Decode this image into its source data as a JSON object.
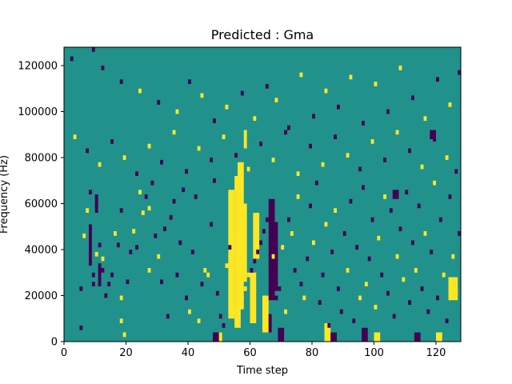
{
  "chart_data": {
    "type": "heatmap",
    "title": "Predicted : Gma",
    "xlabel": "Time step",
    "ylabel": "Frequency (Hz)",
    "xlim": [
      0,
      128
    ],
    "ylim": [
      0,
      128000
    ],
    "x_ticks": [
      0,
      20,
      40,
      60,
      80,
      100,
      120
    ],
    "y_ticks": [
      0,
      20000,
      40000,
      60000,
      80000,
      100000,
      120000
    ],
    "x_tick_labels": [
      "0",
      "20",
      "40",
      "60",
      "80",
      "100",
      "120"
    ],
    "y_tick_labels": [
      "0",
      "20000",
      "40000",
      "60000",
      "80000",
      "100000",
      "120000"
    ],
    "grid": false,
    "legend": "none",
    "colormap": "viridis",
    "value_levels": [
      -1,
      0,
      1
    ],
    "colors": {
      "-1": "#440154",
      "0": "#21918c",
      "1": "#fde725"
    },
    "background_value": 0,
    "cell_height_hz": 2000,
    "cells": [
      {
        "t": 5,
        "f": 5000,
        "v": -1
      },
      {
        "t": 5,
        "f": 22000,
        "v": -1
      },
      {
        "t": 6,
        "f": 45000,
        "v": 1
      },
      {
        "t": 7,
        "f": 56000,
        "v": 1
      },
      {
        "t": 8,
        "f": 64000,
        "v": -1
      },
      {
        "t": 8,
        "f": 49000,
        "v": -1
      },
      {
        "t": 8,
        "f": 33000,
        "v": -1
      },
      {
        "t": 9,
        "f": 28000,
        "v": -1
      },
      {
        "t": 9,
        "f": 24000,
        "v": -1
      },
      {
        "t": 10,
        "f": 62000,
        "v": -1
      },
      {
        "t": 10,
        "f": 58000,
        "v": -1
      },
      {
        "t": 10,
        "f": 37000,
        "v": 1
      },
      {
        "t": 11,
        "f": 41000,
        "v": -1
      },
      {
        "t": 12,
        "f": 35000,
        "v": 1
      },
      {
        "t": 12,
        "f": 30000,
        "v": -1
      },
      {
        "t": 13,
        "f": 19000,
        "v": -1
      },
      {
        "t": 14,
        "f": 24000,
        "v": -1
      },
      {
        "t": 15,
        "f": 28000,
        "v": -1
      },
      {
        "t": 16,
        "f": 46000,
        "v": 1
      },
      {
        "t": 17,
        "f": 41000,
        "v": -1
      },
      {
        "t": 18,
        "f": 8000,
        "v": 1
      },
      {
        "t": 18,
        "f": 18000,
        "v": 1
      },
      {
        "t": 18,
        "f": 56000,
        "v": -1
      },
      {
        "t": 19,
        "f": 2000,
        "v": 1
      },
      {
        "t": 20,
        "f": 25000,
        "v": -1
      },
      {
        "t": 21,
        "f": 38000,
        "v": -1
      },
      {
        "t": 22,
        "f": 47000,
        "v": 1
      },
      {
        "t": 23,
        "f": 40000,
        "v": -1
      },
      {
        "t": 24,
        "f": 64000,
        "v": 1
      },
      {
        "t": 25,
        "f": 55000,
        "v": 1
      },
      {
        "t": 26,
        "f": 62000,
        "v": -1
      },
      {
        "t": 27,
        "f": 57000,
        "v": 1
      },
      {
        "t": 27,
        "f": 30000,
        "v": 1
      },
      {
        "t": 28,
        "f": 68000,
        "v": -1
      },
      {
        "t": 29,
        "f": 45000,
        "v": -1
      },
      {
        "t": 30,
        "f": 36000,
        "v": 1
      },
      {
        "t": 31,
        "f": 25000,
        "v": -1
      },
      {
        "t": 32,
        "f": 48000,
        "v": -1
      },
      {
        "t": 33,
        "f": 10000,
        "v": -1
      },
      {
        "t": 34,
        "f": 53000,
        "v": -1
      },
      {
        "t": 35,
        "f": 60000,
        "v": -1
      },
      {
        "t": 36,
        "f": 28000,
        "v": -1
      },
      {
        "t": 37,
        "f": 42000,
        "v": -1
      },
      {
        "t": 38,
        "f": 65000,
        "v": -1
      },
      {
        "t": 39,
        "f": 18000,
        "v": -1
      },
      {
        "t": 40,
        "f": 12000,
        "v": 1
      },
      {
        "t": 41,
        "f": 38000,
        "v": -1
      },
      {
        "t": 42,
        "f": 62000,
        "v": -1
      },
      {
        "t": 43,
        "f": 8000,
        "v": 1
      },
      {
        "t": 44,
        "f": 24000,
        "v": -1
      },
      {
        "t": 45,
        "f": 30000,
        "v": 1
      },
      {
        "t": 46,
        "f": 28000,
        "v": 1
      },
      {
        "t": 47,
        "f": 50000,
        "v": -1
      },
      {
        "t": 48,
        "f": 69000,
        "v": -1
      },
      {
        "t": 49,
        "f": 20000,
        "v": -1
      },
      {
        "t": 50,
        "f": 10000,
        "v": -1
      },
      {
        "t": 51,
        "f": 6000,
        "v": -1
      },
      {
        "t": 52,
        "f": 32000,
        "v": 1
      },
      {
        "t": 53,
        "f": 40000,
        "v": -1
      },
      {
        "t": 54,
        "f": 45000,
        "v": 1
      },
      {
        "t": 55,
        "f": 12000,
        "v": 1
      },
      {
        "t": 56,
        "f": 15000,
        "v": 1
      },
      {
        "t": 57,
        "f": 18000,
        "v": 1
      },
      {
        "t": 58,
        "f": 22000,
        "v": 1
      },
      {
        "t": 59,
        "f": 28000,
        "v": 1
      },
      {
        "t": 60,
        "f": 30000,
        "v": -1
      },
      {
        "t": 61,
        "f": 34000,
        "v": -1
      },
      {
        "t": 62,
        "f": 38000,
        "v": -1
      },
      {
        "t": 63,
        "f": 42000,
        "v": -1
      },
      {
        "t": 64,
        "f": 47000,
        "v": -1
      },
      {
        "t": 65,
        "f": 52000,
        "v": -1
      },
      {
        "t": 66,
        "f": 57000,
        "v": -1
      },
      {
        "t": 67,
        "f": 36000,
        "v": 1
      },
      {
        "t": 68,
        "f": 18000,
        "v": -1
      },
      {
        "t": 69,
        "f": 22000,
        "v": -1
      },
      {
        "t": 70,
        "f": 40000,
        "v": 1
      },
      {
        "t": 71,
        "f": 12000,
        "v": 1
      },
      {
        "t": 72,
        "f": 52000,
        "v": -1
      },
      {
        "t": 73,
        "f": 46000,
        "v": 1
      },
      {
        "t": 74,
        "f": 30000,
        "v": -1
      },
      {
        "t": 75,
        "f": 62000,
        "v": 1
      },
      {
        "t": 76,
        "f": 24000,
        "v": -1
      },
      {
        "t": 77,
        "f": 18000,
        "v": 1
      },
      {
        "t": 78,
        "f": 35000,
        "v": -1
      },
      {
        "t": 79,
        "f": 58000,
        "v": -1
      },
      {
        "t": 80,
        "f": 42000,
        "v": 1
      },
      {
        "t": 81,
        "f": 68000,
        "v": -1
      },
      {
        "t": 82,
        "f": 16000,
        "v": -1
      },
      {
        "t": 83,
        "f": 28000,
        "v": -1
      },
      {
        "t": 84,
        "f": 50000,
        "v": 1
      },
      {
        "t": 85,
        "f": 6000,
        "v": -1
      },
      {
        "t": 86,
        "f": 38000,
        "v": -1
      },
      {
        "t": 87,
        "f": 56000,
        "v": 1
      },
      {
        "t": 88,
        "f": 22000,
        "v": -1
      },
      {
        "t": 89,
        "f": 12000,
        "v": -1
      },
      {
        "t": 90,
        "f": 46000,
        "v": -1
      },
      {
        "t": 91,
        "f": 30000,
        "v": 1
      },
      {
        "t": 92,
        "f": 60000,
        "v": -1
      },
      {
        "t": 93,
        "f": 8000,
        "v": -1
      },
      {
        "t": 94,
        "f": 40000,
        "v": -1
      },
      {
        "t": 95,
        "f": 18000,
        "v": 1
      },
      {
        "t": 96,
        "f": 66000,
        "v": -1
      },
      {
        "t": 97,
        "f": 24000,
        "v": 1
      },
      {
        "t": 98,
        "f": 35000,
        "v": -1
      },
      {
        "t": 99,
        "f": 52000,
        "v": -1
      },
      {
        "t": 100,
        "f": 14000,
        "v": 1
      },
      {
        "t": 101,
        "f": 44000,
        "v": 1
      },
      {
        "t": 102,
        "f": 28000,
        "v": -1
      },
      {
        "t": 103,
        "f": 62000,
        "v": 1
      },
      {
        "t": 104,
        "f": 20000,
        "v": -1
      },
      {
        "t": 105,
        "f": 56000,
        "v": -1
      },
      {
        "t": 106,
        "f": 10000,
        "v": -1
      },
      {
        "t": 107,
        "f": 36000,
        "v": 1
      },
      {
        "t": 108,
        "f": 48000,
        "v": -1
      },
      {
        "t": 109,
        "f": 26000,
        "v": 1
      },
      {
        "t": 110,
        "f": 64000,
        "v": -1
      },
      {
        "t": 111,
        "f": 16000,
        "v": -1
      },
      {
        "t": 112,
        "f": 42000,
        "v": -1
      },
      {
        "t": 113,
        "f": 30000,
        "v": 1
      },
      {
        "t": 114,
        "f": 58000,
        "v": -1
      },
      {
        "t": 115,
        "f": 22000,
        "v": -1
      },
      {
        "t": 116,
        "f": 46000,
        "v": 1
      },
      {
        "t": 117,
        "f": 12000,
        "v": -1
      },
      {
        "t": 118,
        "f": 38000,
        "v": -1
      },
      {
        "t": 119,
        "f": 68000,
        "v": 1
      },
      {
        "t": 120,
        "f": 18000,
        "v": -1
      },
      {
        "t": 121,
        "f": 52000,
        "v": -1
      },
      {
        "t": 122,
        "f": 28000,
        "v": 1
      },
      {
        "t": 123,
        "f": 8000,
        "v": -1
      },
      {
        "t": 124,
        "f": 62000,
        "v": -1
      },
      {
        "t": 125,
        "f": 36000,
        "v": 1
      },
      {
        "t": 126,
        "f": 20000,
        "v": 1
      },
      {
        "t": 127,
        "f": 46000,
        "v": -1
      },
      {
        "t": 2,
        "f": 122000,
        "v": -1
      },
      {
        "t": 9,
        "f": 126000,
        "v": -1
      },
      {
        "t": 12,
        "f": 118000,
        "v": -1
      },
      {
        "t": 18,
        "f": 112000,
        "v": -1
      },
      {
        "t": 24,
        "f": 108000,
        "v": 1
      },
      {
        "t": 30,
        "f": 103000,
        "v": -1
      },
      {
        "t": 36,
        "f": 99000,
        "v": 1
      },
      {
        "t": 40,
        "f": 112000,
        "v": -1
      },
      {
        "t": 44,
        "f": 106000,
        "v": 1
      },
      {
        "t": 48,
        "f": 95000,
        "v": -1
      },
      {
        "t": 52,
        "f": 101000,
        "v": 1
      },
      {
        "t": 57,
        "f": 107000,
        "v": -1
      },
      {
        "t": 61,
        "f": 96000,
        "v": 1
      },
      {
        "t": 65,
        "f": 110000,
        "v": -1
      },
      {
        "t": 68,
        "f": 104000,
        "v": 1
      },
      {
        "t": 72,
        "f": 92000,
        "v": -1
      },
      {
        "t": 76,
        "f": 115000,
        "v": 1
      },
      {
        "t": 80,
        "f": 97000,
        "v": -1
      },
      {
        "t": 84,
        "f": 108000,
        "v": 1
      },
      {
        "t": 88,
        "f": 101000,
        "v": -1
      },
      {
        "t": 92,
        "f": 114000,
        "v": 1
      },
      {
        "t": 96,
        "f": 94000,
        "v": -1
      },
      {
        "t": 100,
        "f": 111000,
        "v": 1
      },
      {
        "t": 104,
        "f": 99000,
        "v": -1
      },
      {
        "t": 108,
        "f": 118000,
        "v": 1
      },
      {
        "t": 112,
        "f": 105000,
        "v": -1
      },
      {
        "t": 116,
        "f": 96000,
        "v": 1
      },
      {
        "t": 120,
        "f": 113000,
        "v": -1
      },
      {
        "t": 124,
        "f": 102000,
        "v": 1
      },
      {
        "t": 127,
        "f": 116000,
        "v": -1
      },
      {
        "t": 3,
        "f": 88000,
        "v": 1
      },
      {
        "t": 7,
        "f": 82000,
        "v": -1
      },
      {
        "t": 11,
        "f": 76000,
        "v": 1
      },
      {
        "t": 15,
        "f": 86000,
        "v": -1
      },
      {
        "t": 19,
        "f": 79000,
        "v": 1
      },
      {
        "t": 23,
        "f": 72000,
        "v": -1
      },
      {
        "t": 27,
        "f": 84000,
        "v": 1
      },
      {
        "t": 31,
        "f": 77000,
        "v": -1
      },
      {
        "t": 35,
        "f": 90000,
        "v": 1
      },
      {
        "t": 39,
        "f": 73000,
        "v": -1
      },
      {
        "t": 43,
        "f": 83000,
        "v": 1
      },
      {
        "t": 47,
        "f": 78000,
        "v": -1
      },
      {
        "t": 51,
        "f": 88000,
        "v": 1
      },
      {
        "t": 55,
        "f": 80000,
        "v": -1
      },
      {
        "t": 59,
        "f": 74000,
        "v": 1
      },
      {
        "t": 63,
        "f": 85000,
        "v": -1
      },
      {
        "t": 67,
        "f": 78000,
        "v": 1
      },
      {
        "t": 71,
        "f": 90000,
        "v": -1
      },
      {
        "t": 75,
        "f": 72000,
        "v": 1
      },
      {
        "t": 79,
        "f": 84000,
        "v": -1
      },
      {
        "t": 83,
        "f": 76000,
        "v": 1
      },
      {
        "t": 87,
        "f": 88000,
        "v": -1
      },
      {
        "t": 91,
        "f": 80000,
        "v": 1
      },
      {
        "t": 95,
        "f": 74000,
        "v": -1
      },
      {
        "t": 99,
        "f": 86000,
        "v": 1
      },
      {
        "t": 103,
        "f": 78000,
        "v": -1
      },
      {
        "t": 107,
        "f": 90000,
        "v": 1
      },
      {
        "t": 111,
        "f": 82000,
        "v": -1
      },
      {
        "t": 115,
        "f": 75000,
        "v": 1
      },
      {
        "t": 119,
        "f": 87000,
        "v": -1
      },
      {
        "t": 123,
        "f": 79000,
        "v": 1
      },
      {
        "t": 126,
        "f": 73000,
        "v": -1
      }
    ],
    "bands": [
      {
        "t0": 53,
        "t1": 55,
        "f0": 10000,
        "f1": 66000,
        "v": 1
      },
      {
        "t0": 55,
        "t1": 57,
        "f0": 6000,
        "f1": 72000,
        "v": 1
      },
      {
        "t0": 56,
        "t1": 58,
        "f0": 14000,
        "f1": 78000,
        "v": 1
      },
      {
        "t0": 57,
        "t1": 59,
        "f0": 26000,
        "f1": 60000,
        "v": 1
      },
      {
        "t0": 58,
        "t1": 59,
        "f0": 84000,
        "f1": 92000,
        "v": 1
      },
      {
        "t0": 60,
        "t1": 62,
        "f0": 8000,
        "f1": 30000,
        "v": 1
      },
      {
        "t0": 61,
        "t1": 63,
        "f0": 36000,
        "f1": 56000,
        "v": 1
      },
      {
        "t0": 64,
        "t1": 66,
        "f0": 4000,
        "f1": 20000,
        "v": 1
      },
      {
        "t0": 66,
        "t1": 68,
        "f0": 18000,
        "f1": 62000,
        "v": -1
      },
      {
        "t0": 67,
        "t1": 69,
        "f0": 22000,
        "f1": 52000,
        "v": -1
      },
      {
        "t0": 66,
        "t1": 67,
        "f0": 4000,
        "f1": 12000,
        "v": -1
      },
      {
        "t0": 8,
        "t1": 9,
        "f0": 34000,
        "f1": 50000,
        "v": -1
      },
      {
        "t0": 10,
        "t1": 11,
        "f0": 56000,
        "f1": 64000,
        "v": -1
      },
      {
        "t0": 11,
        "t1": 12,
        "f0": 24000,
        "f1": 34000,
        "v": -1
      },
      {
        "t0": 48,
        "t1": 50,
        "f0": 0,
        "f1": 4000,
        "v": -1
      },
      {
        "t0": 50,
        "t1": 51,
        "f0": 0,
        "f1": 4000,
        "v": 1
      },
      {
        "t0": 69,
        "t1": 71,
        "f0": 0,
        "f1": 6000,
        "v": -1
      },
      {
        "t0": 84,
        "t1": 86,
        "f0": 0,
        "f1": 8000,
        "v": 1
      },
      {
        "t0": 86,
        "t1": 88,
        "f0": 0,
        "f1": 4000,
        "v": -1
      },
      {
        "t0": 96,
        "t1": 98,
        "f0": 0,
        "f1": 6000,
        "v": -1
      },
      {
        "t0": 100,
        "t1": 102,
        "f0": 0,
        "f1": 4000,
        "v": 1
      },
      {
        "t0": 113,
        "t1": 115,
        "f0": 0,
        "f1": 4000,
        "v": -1
      },
      {
        "t0": 120,
        "t1": 122,
        "f0": 0,
        "f1": 4000,
        "v": 1
      },
      {
        "t0": 124,
        "t1": 127,
        "f0": 18000,
        "f1": 28000,
        "v": 1
      },
      {
        "t0": 118,
        "t1": 120,
        "f0": 88000,
        "f1": 92000,
        "v": -1
      },
      {
        "t0": 106,
        "t1": 108,
        "f0": 62000,
        "f1": 66000,
        "v": -1
      }
    ]
  }
}
